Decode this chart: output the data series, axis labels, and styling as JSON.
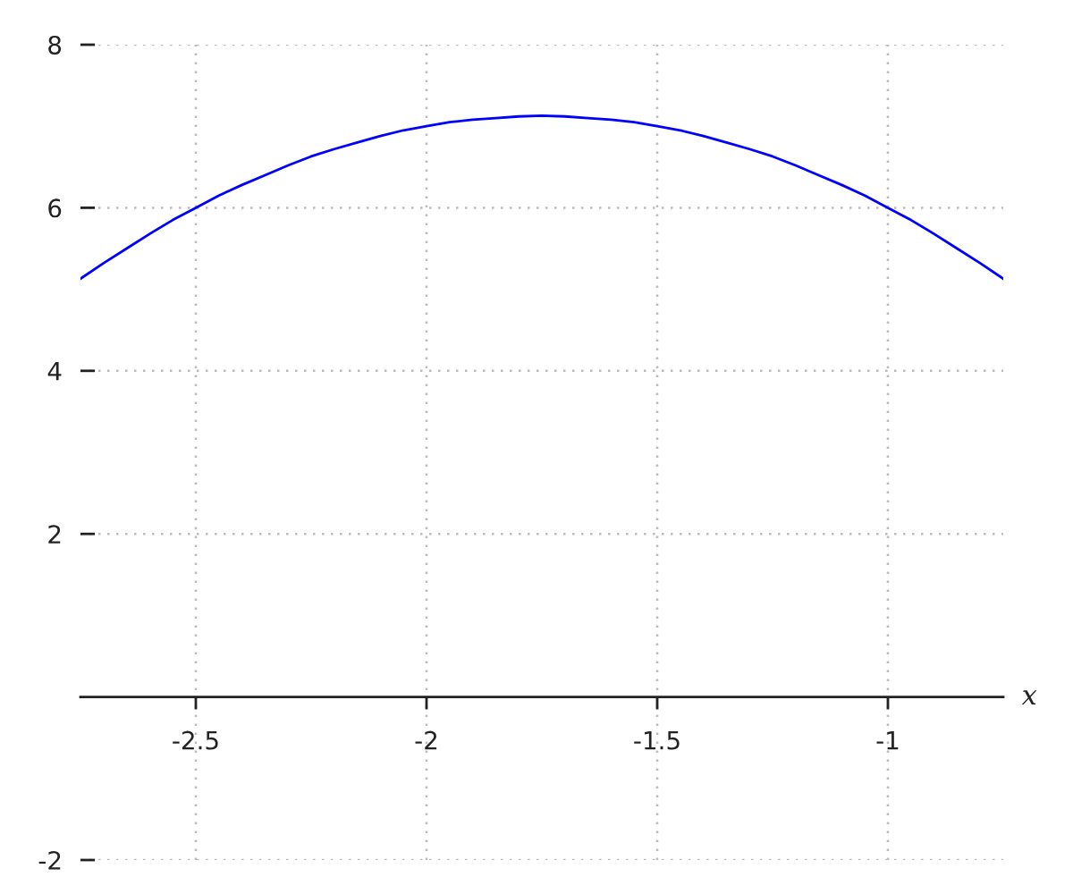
{
  "chart_data": {
    "type": "line",
    "xlabel": "x",
    "x": [
      -2.75,
      -2.7,
      -2.65,
      -2.6,
      -2.55,
      -2.5,
      -2.45,
      -2.4,
      -2.35,
      -2.3,
      -2.25,
      -2.2,
      -2.15,
      -2.1,
      -2.05,
      -2.0,
      -1.95,
      -1.9,
      -1.85,
      -1.8,
      -1.75,
      -1.7,
      -1.65,
      -1.6,
      -1.55,
      -1.5,
      -1.45,
      -1.4,
      -1.35,
      -1.3,
      -1.25,
      -1.2,
      -1.15,
      -1.1,
      -1.05,
      -1.0,
      -0.95,
      -0.9,
      -0.85,
      -0.8,
      -0.75
    ],
    "series": [
      {
        "color": "#0000ff",
        "values": [
          5.13,
          5.32,
          5.5,
          5.68,
          5.85,
          6.0,
          6.15,
          6.28,
          6.4,
          6.52,
          6.63,
          6.72,
          6.8,
          6.88,
          6.95,
          7.0,
          7.05,
          7.08,
          7.1,
          7.12,
          7.13,
          7.12,
          7.1,
          7.08,
          7.05,
          7.0,
          6.95,
          6.88,
          6.8,
          6.72,
          6.63,
          6.52,
          6.4,
          6.28,
          6.15,
          6.0,
          5.85,
          5.68,
          5.5,
          5.32,
          5.13
        ]
      }
    ],
    "xlim": [
      -2.75,
      -0.75
    ],
    "ylim": [
      -2,
      8
    ],
    "xticks": [
      -2.5,
      -2,
      -1.5,
      -1
    ],
    "yticks": [
      -2,
      2,
      4,
      6,
      8
    ],
    "grid": true
  }
}
